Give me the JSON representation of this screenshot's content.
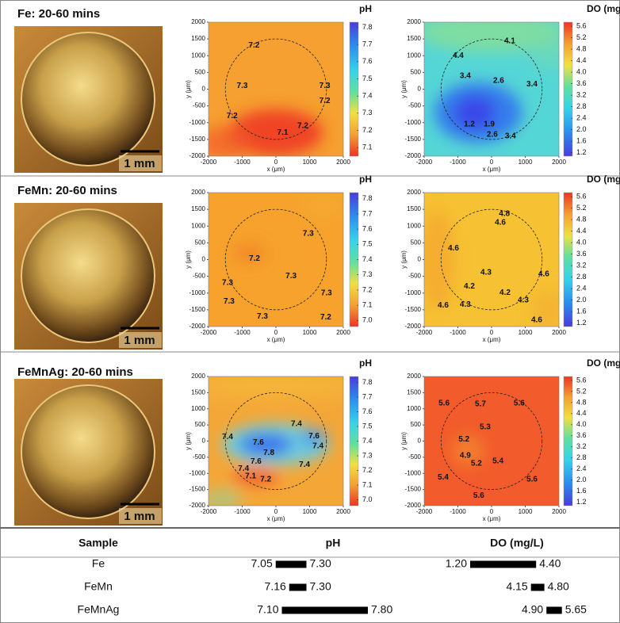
{
  "figure": {
    "rows": [
      {
        "title": "Fe: 20-60 mins",
        "scale_bar": "1 mm",
        "maps": [
          {
            "colorbar_label": "pH",
            "clim": [
              7.05,
              7.83
            ],
            "cticks": [
              7.1,
              7.2,
              7.3,
              7.4,
              7.5,
              7.6,
              7.7,
              7.8
            ],
            "xlabel": "x (μm)",
            "ylabel": "y (μm)",
            "xlim": [
              -2000,
              2000
            ],
            "ylim": [
              -2000,
              2000
            ],
            "xticks": [
              -2000,
              -1000,
              0,
              1000,
              2000
            ],
            "yticks": [
              -2000,
              -1500,
              -1000,
              -500,
              0,
              500,
              1000,
              1500,
              2000
            ],
            "contour_labels": [
              7.2,
              7.3,
              7.3,
              7.2,
              7.2,
              7.1,
              7.2
            ]
          },
          {
            "colorbar_label": "DO (mg/L)",
            "clim": [
              1.08,
              5.74
            ],
            "cticks": [
              1.2,
              1.6,
              {
                "value": 2,
                "label": "2.0"
              },
              2.4,
              2.8,
              3.2,
              3.6,
              {
                "value": 4,
                "label": "4.0"
              },
              4.4,
              4.8,
              5.2,
              5.6
            ],
            "xlabel": "x (μm)",
            "ylabel": "y (μm)",
            "xlim": [
              -2000,
              2000
            ],
            "ylim": [
              -2000,
              2000
            ],
            "xticks": [
              -2000,
              -1000,
              0,
              1000,
              2000
            ],
            "yticks": [
              -2000,
              -1500,
              -1000,
              -500,
              0,
              500,
              1000,
              1500,
              2000
            ],
            "contour_labels": [
              4.1,
              4.4,
              3.4,
              2.6,
              3.4,
              1.2,
              1.9,
              2.6,
              3.4
            ]
          }
        ]
      },
      {
        "title": "FeMn: 20-60 mins",
        "scale_bar": "1 mm",
        "maps": [
          {
            "colorbar_label": "pH",
            "clim": [
              6.96,
              7.84
            ],
            "cticks": [
              {
                "value": 7,
                "label": "7.0"
              },
              7.1,
              7.2,
              7.3,
              7.4,
              7.5,
              7.6,
              7.7,
              7.8
            ],
            "xlabel": "x (μm)",
            "ylabel": "y (μm)",
            "xlim": [
              -2000,
              2000
            ],
            "ylim": [
              -2000,
              2000
            ],
            "xticks": [
              -2000,
              -1000,
              0,
              1000,
              2000
            ],
            "yticks": [
              -2000,
              -1500,
              -1000,
              -500,
              0,
              500,
              1000,
              1500,
              2000
            ],
            "contour_labels": [
              7.3,
              7.2,
              7.3,
              7.3,
              7.3,
              7.3,
              7.3,
              7.2
            ]
          },
          {
            "colorbar_label": "DO (mg/L)",
            "clim": [
              1.08,
              5.74
            ],
            "cticks": [
              1.2,
              1.6,
              {
                "value": 2,
                "label": "2.0"
              },
              2.4,
              2.8,
              3.2,
              3.6,
              {
                "value": 4,
                "label": "4.0"
              },
              4.4,
              4.8,
              5.2,
              5.6
            ],
            "xlabel": "x (μm)",
            "ylabel": "y (μm)",
            "xlim": [
              -2000,
              2000
            ],
            "ylim": [
              -2000,
              2000
            ],
            "xticks": [
              -2000,
              -1000,
              0,
              1000,
              2000
            ],
            "yticks": [
              -2000,
              -1500,
              -1000,
              -500,
              0,
              500,
              1000,
              1500,
              2000
            ],
            "contour_labels": [
              4.8,
              4.6,
              4.6,
              4.3,
              4.6,
              4.2,
              4.2,
              4.6,
              4.3,
              4.3,
              4.6
            ]
          }
        ]
      },
      {
        "title": "FeMnAg: 20-60 mins",
        "scale_bar": "1 mm",
        "maps": [
          {
            "colorbar_label": "pH",
            "clim": [
              6.96,
              7.84
            ],
            "cticks": [
              {
                "value": 7,
                "label": "7.0"
              },
              7.1,
              7.2,
              7.3,
              7.4,
              7.5,
              7.6,
              7.7,
              7.8
            ],
            "xlabel": "x (μm)",
            "ylabel": "y (μm)",
            "xlim": [
              -2000,
              2000
            ],
            "ylim": [
              -2000,
              2000
            ],
            "xticks": [
              -2000,
              -1000,
              0,
              1000,
              2000
            ],
            "yticks": [
              -2000,
              -1500,
              -1000,
              -500,
              0,
              500,
              1000,
              1500,
              2000
            ],
            "contour_labels": [
              7.4,
              7.4,
              7.6,
              7.8,
              7.6,
              7.4,
              7.6,
              7.4,
              7.4,
              7.1,
              7.2
            ]
          },
          {
            "colorbar_label": "DO (mg/L)",
            "clim": [
              1.08,
              5.74
            ],
            "cticks": [
              1.2,
              1.6,
              {
                "value": 2,
                "label": "2.0"
              },
              2.4,
              2.8,
              3.2,
              3.6,
              {
                "value": 4,
                "label": "4.0"
              },
              4.4,
              4.8,
              5.2,
              5.6
            ],
            "xlabel": "x (μm)",
            "ylabel": "y (μm)",
            "xlim": [
              -2000,
              2000
            ],
            "ylim": [
              -2000,
              2000
            ],
            "xticks": [
              -2000,
              -1000,
              0,
              1000,
              2000
            ],
            "yticks": [
              -2000,
              -1500,
              -1000,
              -500,
              0,
              500,
              1000,
              1500,
              2000
            ],
            "contour_labels": [
              5.6,
              5.7,
              5.6,
              5.3,
              5.2,
              4.9,
              5.2,
              5.4,
              5.4,
              5.6,
              5.6
            ]
          }
        ]
      }
    ]
  },
  "table": {
    "headers": [
      "Sample",
      "pH",
      "DO (mg/L)"
    ],
    "rows": [
      {
        "sample": "Fe",
        "ph": [
          7.05,
          7.3
        ],
        "ph_labels": [
          "7.05",
          "7.30"
        ],
        "do": [
          1.2,
          4.4
        ],
        "do_labels": [
          "1.20",
          "4.40"
        ]
      },
      {
        "sample": "FeMn",
        "ph": [
          7.16,
          7.3
        ],
        "ph_labels": [
          "7.16",
          "7.30"
        ],
        "do": [
          4.15,
          4.8
        ],
        "do_labels": [
          "4.15",
          "4.80"
        ]
      },
      {
        "sample": "FeMnAg",
        "ph": [
          7.1,
          7.8
        ],
        "ph_labels": [
          "7.10",
          "7.80"
        ],
        "do": [
          4.9,
          5.65
        ],
        "do_labels": [
          "4.90",
          "5.65"
        ]
      }
    ]
  }
}
